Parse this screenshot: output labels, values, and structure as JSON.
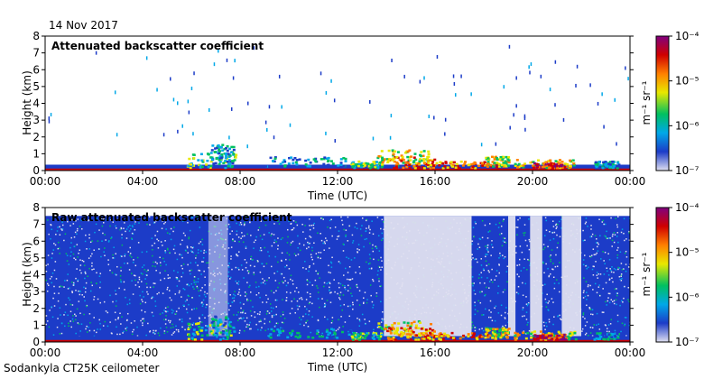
{
  "header": {
    "date": "14 Nov 2017"
  },
  "footer": {
    "instrument": "Sodankyla CT25K ceilometer"
  },
  "chart_data": [
    {
      "type": "heatmap",
      "title": "Attenuated backscatter coefficient",
      "xlabel": "Time (UTC)",
      "ylabel": "Height (km)",
      "x_ticks": [
        "00:00",
        "04:00",
        "08:00",
        "12:00",
        "16:00",
        "20:00",
        "00:00"
      ],
      "y_ticks": [
        "0",
        "1",
        "2",
        "3",
        "4",
        "5",
        "6",
        "7",
        "8"
      ],
      "xlim_hours": [
        0,
        24
      ],
      "ylim_km": [
        0,
        8
      ],
      "colorbar": {
        "label": "m⁻¹ sr⁻¹",
        "ticks": [
          "10⁻⁴",
          "10⁻⁵",
          "10⁻⁶",
          "10⁻⁷"
        ],
        "range": [
          1e-07,
          0.0001
        ],
        "scale": "log"
      }
    },
    {
      "type": "heatmap",
      "title": "Raw attenuated backscatter coefficient",
      "xlabel": "Time (UTC)",
      "ylabel": "Height (km)",
      "x_ticks": [
        "00:00",
        "04:00",
        "08:00",
        "12:00",
        "16:00",
        "20:00",
        "00:00"
      ],
      "y_ticks": [
        "0",
        "1",
        "2",
        "3",
        "4",
        "5",
        "6",
        "7",
        "8"
      ],
      "xlim_hours": [
        0,
        24
      ],
      "ylim_km": [
        0,
        8
      ],
      "colorbar": {
        "label": "m⁻¹ sr⁻¹",
        "ticks": [
          "10⁻⁴",
          "10⁻⁵",
          "10⁻⁶",
          "10⁻⁷"
        ],
        "range": [
          1e-07,
          0.0001
        ],
        "scale": "log"
      }
    }
  ],
  "colors": {
    "colormap": [
      "#e0e0f0",
      "#1c3cc8",
      "#00a8e8",
      "#00c060",
      "#e8e800",
      "#ff8000",
      "#d00000",
      "#800080"
    ],
    "background_noise": "#2040c0"
  }
}
